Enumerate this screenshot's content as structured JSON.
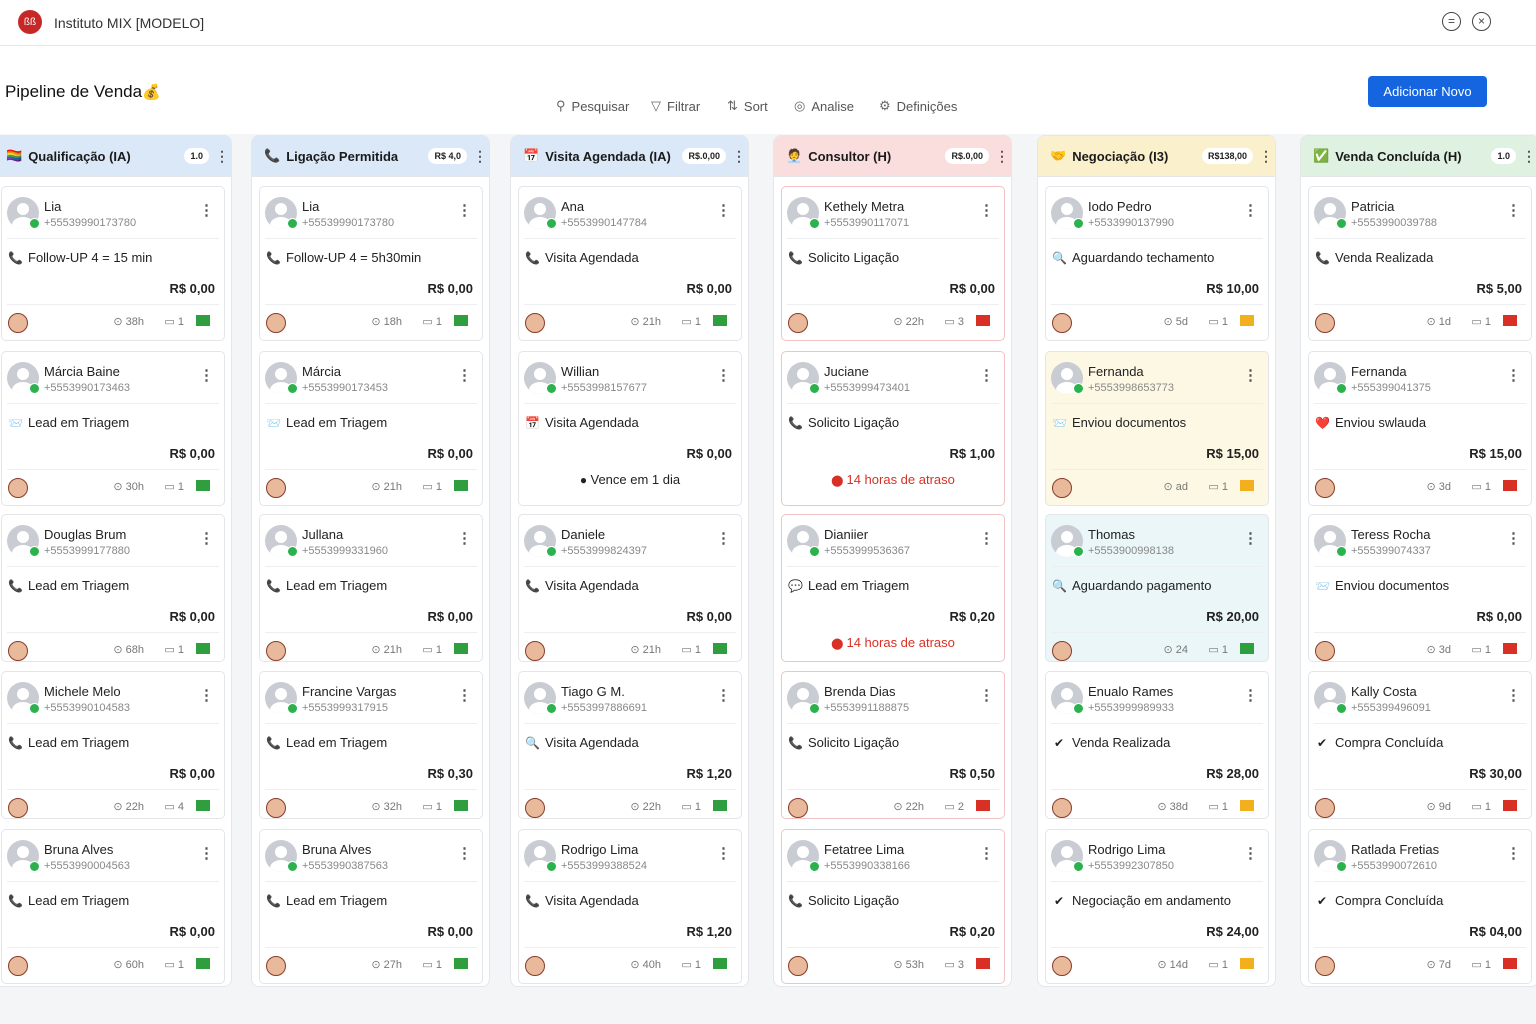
{
  "app": {
    "logo": "ßß",
    "title": "Instituto MIX [MODELO]"
  },
  "page": {
    "title": "Pipeline de Venda",
    "title_icon": "💰"
  },
  "toolbar": {
    "search": "Pesquisar",
    "filter": "Filtrar",
    "sort": "Sort",
    "analyze": "Analise",
    "settings": "Definições",
    "add_button": "Adicionar Novo"
  },
  "columns": [
    {
      "title": "Qualificação (IA)",
      "badge": "1.0",
      "icon": "🏳️‍🌈",
      "bg": "#dbe8f8",
      "cards": [
        {
          "name": "Lia",
          "phone": "+55539990173780",
          "status": "Follow-UP 4 = 15 min",
          "sicon": "📞",
          "value": "R$ 0,00",
          "time": "38h",
          "count": "1",
          "flag": "#2e9e3e"
        },
        {
          "name": "Márcia Baine",
          "phone": "+5553990173463",
          "status": "Lead em Triagem",
          "sicon": "📨",
          "value": "R$ 0,00",
          "time": "30h",
          "count": "1",
          "flag": "#2e9e3e"
        },
        {
          "name": "Douglas Brum",
          "phone": "+5553999177880",
          "status": "Lead em Triagem",
          "sicon": "📞",
          "value": "R$ 0,00",
          "time": "68h",
          "count": "1",
          "flag": "#2e9e3e"
        },
        {
          "name": "Michele Melo",
          "phone": "+5553990104583",
          "status": "Lead em Triagem",
          "sicon": "📞",
          "value": "R$ 0,00",
          "time": "22h",
          "count": "4",
          "flag": "#2e9e3e"
        },
        {
          "name": "Bruna Alves",
          "phone": "+5553990004563",
          "status": "Lead em Triagem",
          "sicon": "📞",
          "value": "R$ 0,00",
          "time": "60h",
          "count": "1",
          "flag": "#2e9e3e"
        }
      ]
    },
    {
      "title": "Ligação Permitida",
      "badge": "R$ 4,0",
      "icon": "📞",
      "bg": "#dbe8f8",
      "cards": [
        {
          "name": "Lia",
          "phone": "+55539990173780",
          "status": "Follow-UP 4 = 5h30min",
          "sicon": "📞",
          "value": "R$ 0,00",
          "time": "18h",
          "count": "1",
          "flag": "#2e9e3e"
        },
        {
          "name": "Márcia",
          "phone": "+5553990173453",
          "status": "Lead em Triagem",
          "sicon": "📨",
          "value": "R$ 0,00",
          "time": "21h",
          "count": "1",
          "flag": "#2e9e3e"
        },
        {
          "name": "Jullana",
          "phone": "+5553999331960",
          "status": "Lead em Triagem",
          "sicon": "📞",
          "value": "R$ 0,00",
          "time": "21h",
          "count": "1",
          "flag": "#2e9e3e"
        },
        {
          "name": "Francine Vargas",
          "phone": "+5553999317915",
          "status": "Lead em Triagem",
          "sicon": "📞",
          "value": "R$ 0,30",
          "time": "32h",
          "count": "1",
          "flag": "#2e9e3e"
        },
        {
          "name": "Bruna Alves",
          "phone": "+5553990387563",
          "status": "Lead em Triagem",
          "sicon": "📞",
          "value": "R$ 0,00",
          "time": "27h",
          "count": "1",
          "flag": "#2e9e3e"
        }
      ]
    },
    {
      "title": "Visita Agendada (IA)",
      "badge": "R$.0,00",
      "icon": "📅",
      "bg": "#dbe8f8",
      "cards": [
        {
          "name": "Ana",
          "phone": "+5553990147784",
          "status": "Visita Agendada",
          "sicon": "📞",
          "value": "R$ 0,00",
          "time": "21h",
          "count": "1",
          "flag": "#2e9e3e"
        },
        {
          "name": "Willian",
          "phone": "+5553998157677",
          "status": "Visita Agendada",
          "sicon": "📅",
          "value": "R$ 0,00",
          "due": "Vence em 1 dia"
        },
        {
          "name": "Daniele",
          "phone": "+5553999824397",
          "status": "Visita Agendada",
          "sicon": "📞",
          "value": "R$ 0,00",
          "time": "21h",
          "count": "1",
          "flag": "#2e9e3e"
        },
        {
          "name": "Tiago G M.",
          "phone": "+5553997886691",
          "status": "Visita Agendada",
          "sicon": "🔍",
          "value": "R$ 1,20",
          "time": "22h",
          "count": "1",
          "flag": "#2e9e3e"
        },
        {
          "name": "Rodrigo Lima",
          "phone": "+5553999388524",
          "status": "Visita Agendada",
          "sicon": "📞",
          "value": "R$ 1,20",
          "time": "40h",
          "count": "1",
          "flag": "#2e9e3e"
        }
      ]
    },
    {
      "title": "Consultor (H)",
      "badge": "R$.0,00",
      "icon": "🧑‍💼",
      "bg": "#fadede",
      "cards": [
        {
          "name": "Kethely Metra",
          "phone": "+5553990117071",
          "status": "Solicito Ligação",
          "sicon": "📞",
          "value": "R$ 0,00",
          "time": "22h",
          "count": "3",
          "flag": "#d93025"
        },
        {
          "name": "Juciane",
          "phone": "+5553999473401",
          "status": "Solicito Ligação",
          "sicon": "📞",
          "value": "R$ 1,00",
          "warn": "14 horas de atraso"
        },
        {
          "name": "Dianiier",
          "phone": "+5553999536367",
          "status": "Lead em Triagem",
          "sicon": "💬",
          "value": "R$ 0,20",
          "warn": "14 horas de atraso"
        },
        {
          "name": "Brenda Dias",
          "phone": "+5553991188875",
          "status": "Solicito Ligação",
          "sicon": "📞",
          "value": "R$ 0,50",
          "time": "22h",
          "count": "2",
          "flag": "#d93025"
        },
        {
          "name": "Fetatree Lima",
          "phone": "+5553990338166",
          "status": "Solicito Ligação",
          "sicon": "📞",
          "value": "R$ 0,20",
          "time": "53h",
          "count": "3",
          "flag": "#d93025"
        }
      ]
    },
    {
      "title": "Negociação (I3)",
      "badge": "R$138,00",
      "icon": "🤝",
      "bg": "#fbf0cc",
      "cards": [
        {
          "name": "Iodo Pedro",
          "phone": "+5533990137990",
          "status": "Aguardando techamento",
          "sicon": "🔍",
          "value": "R$ 10,00",
          "time": "5d",
          "count": "1",
          "flag": "#f2b01e"
        },
        {
          "name": "Fernanda",
          "phone": "+5553998653773",
          "status": "Enviou documentos",
          "sicon": "📨",
          "value": "R$ 15,00",
          "time": "ad",
          "count": "1",
          "flag": "#f2b01e",
          "tint": "#fdf8e4"
        },
        {
          "name": "Thomas",
          "phone": "+5553900998138",
          "status": "Aguardando pagamento",
          "sicon": "🔍",
          "value": "R$ 20,00",
          "time": "24",
          "count": "1",
          "flag": "#2e9e3e",
          "tint": "#eaf6f8"
        },
        {
          "name": "Enualo Rames",
          "phone": "+5553999989933",
          "status": "Venda Realizada",
          "sicon": "✔",
          "value": "R$ 28,00",
          "time": "38d",
          "count": "1",
          "flag": "#f2b01e"
        },
        {
          "name": "Rodrigo Lima",
          "phone": "+5553992307850",
          "status": "Negociação em andamento",
          "sicon": "✔",
          "value": "R$ 24,00",
          "time": "14d",
          "count": "1",
          "flag": "#f2b01e"
        }
      ]
    },
    {
      "title": "Venda Concluída (H)",
      "badge": "1.0",
      "icon": "✅",
      "bg": "#dff2e1",
      "cards": [
        {
          "name": "Patricia",
          "phone": "+5553990039788",
          "status": "Venda Realizada",
          "sicon": "📞",
          "value": "R$ 5,00",
          "time": "1d",
          "count": "1",
          "flag": "#d93025"
        },
        {
          "name": "Fernanda",
          "phone": "+555399041375",
          "status": "Enviou swlauda",
          "sicon": "❤️",
          "value": "R$ 15,00",
          "time": "3d",
          "count": "1",
          "flag": "#d93025"
        },
        {
          "name": "Teress Rocha",
          "phone": "+555399074337",
          "status": "Enviou documentos",
          "sicon": "📨",
          "value": "R$ 0,00",
          "time": "3d",
          "count": "1",
          "flag": "#d93025"
        },
        {
          "name": "Kally Costa",
          "phone": "+555399496091",
          "status": "Compra Concluída",
          "sicon": "✔",
          "value": "R$ 30,00",
          "time": "9d",
          "count": "1",
          "flag": "#d93025"
        },
        {
          "name": "Ratlada Fretias",
          "phone": "+5553990072610",
          "status": "Compra Concluída",
          "sicon": "✔",
          "value": "R$ 04,00",
          "time": "7d",
          "count": "1",
          "flag": "#d93025"
        }
      ]
    }
  ]
}
